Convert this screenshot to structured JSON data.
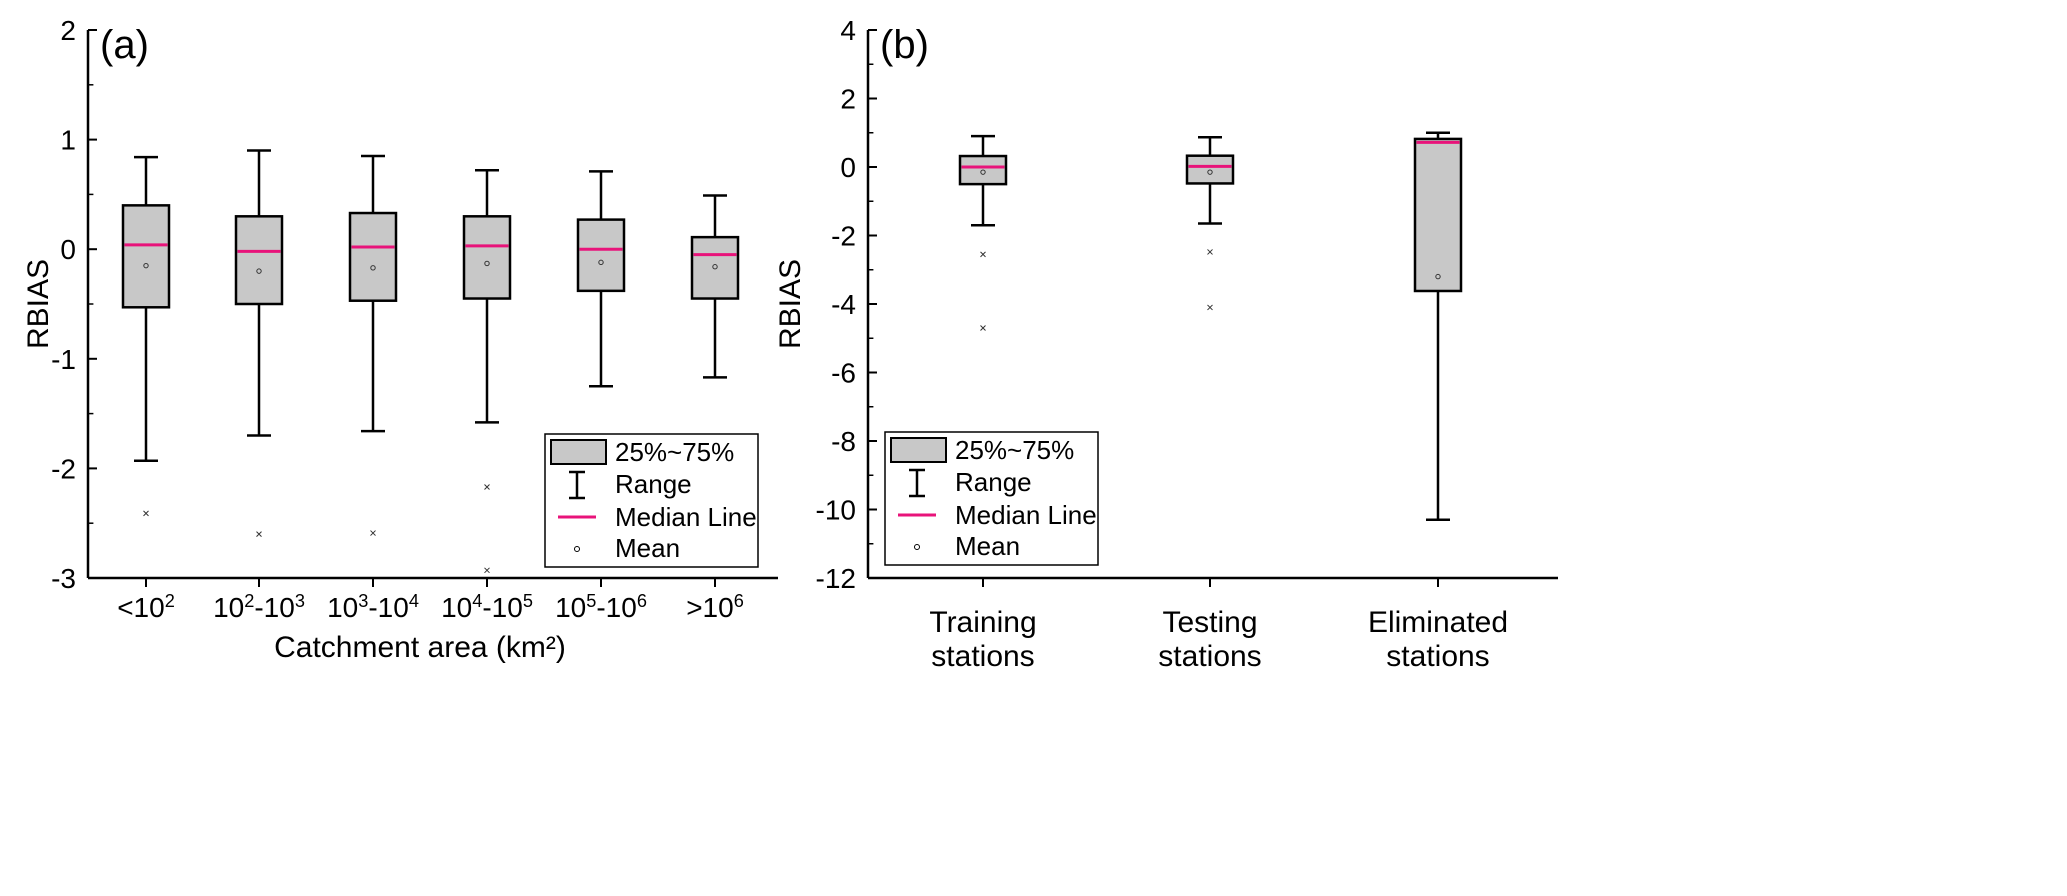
{
  "chart_data": [
    {
      "type": "box",
      "panel_label": "(a)",
      "xlabel": "Catchment area (km²)",
      "ylabel": "RBIAS",
      "ylim": [
        -3,
        2
      ],
      "yticks": [
        -3,
        -2,
        -1,
        0,
        1,
        2
      ],
      "categories": [
        "<10²",
        "10²-10³",
        "10³-10⁴",
        "10⁴-10⁵",
        "10⁵-10⁶",
        ">10⁶"
      ],
      "boxes": [
        {
          "category": "<10²",
          "min": -1.93,
          "q1": -0.53,
          "median": 0.04,
          "q3": 0.4,
          "max": 0.84,
          "mean": -0.15,
          "outliers": [
            -2.41
          ]
        },
        {
          "category": "10²-10³",
          "min": -1.7,
          "q1": -0.5,
          "median": -0.02,
          "q3": 0.3,
          "max": 0.9,
          "mean": -0.2,
          "outliers": [
            -2.6
          ]
        },
        {
          "category": "10³-10⁴",
          "min": -1.66,
          "q1": -0.47,
          "median": 0.02,
          "q3": 0.33,
          "max": 0.85,
          "mean": -0.17,
          "outliers": [
            -2.59
          ]
        },
        {
          "category": "10⁴-10⁵",
          "min": -1.58,
          "q1": -0.45,
          "median": 0.03,
          "q3": 0.3,
          "max": 0.72,
          "mean": -0.13,
          "outliers": [
            -2.17,
            -2.93
          ]
        },
        {
          "category": "10⁵-10⁶",
          "min": -1.25,
          "q1": -0.38,
          "median": 0.0,
          "q3": 0.27,
          "max": 0.71,
          "mean": -0.12,
          "outliers": []
        },
        {
          "category": ">10⁶",
          "min": -1.17,
          "q1": -0.45,
          "median": -0.05,
          "q3": 0.11,
          "max": 0.49,
          "mean": -0.16,
          "outliers": []
        }
      ],
      "legend": {
        "placement": "bottom-right",
        "entries": [
          "25%~75%",
          "Range",
          "Median Line",
          "Mean"
        ]
      }
    },
    {
      "type": "box",
      "panel_label": "(b)",
      "xlabel": "",
      "ylabel": "RBIAS",
      "ylim": [
        -12,
        4
      ],
      "yticks": [
        -12,
        -10,
        -8,
        -6,
        -4,
        -2,
        0,
        2,
        4
      ],
      "categories": [
        "Training stations",
        "Testing stations",
        "Eliminated stations"
      ],
      "category_lines": [
        [
          "Training",
          "stations"
        ],
        [
          "Testing",
          "stations"
        ],
        [
          "Eliminated",
          "stations"
        ]
      ],
      "boxes": [
        {
          "category": "Training stations",
          "min": -1.7,
          "q1": -0.5,
          "median": 0.0,
          "q3": 0.32,
          "max": 0.9,
          "mean": -0.15,
          "outliers": [
            -2.55,
            -4.7
          ]
        },
        {
          "category": "Testing stations",
          "min": -1.65,
          "q1": -0.48,
          "median": 0.02,
          "q3": 0.33,
          "max": 0.87,
          "mean": -0.15,
          "outliers": [
            -2.48,
            -4.1
          ]
        },
        {
          "category": "Eliminated stations",
          "min": -10.3,
          "q1": -3.62,
          "median": 0.72,
          "q3": 0.82,
          "max": 1.0,
          "mean": -3.2,
          "outliers": []
        }
      ],
      "legend": {
        "placement": "bottom-left",
        "entries": [
          "25%~75%",
          "Range",
          "Median Line",
          "Mean"
        ]
      }
    }
  ],
  "colors": {
    "box_fill": "#c8c8c8",
    "median": "#e8137a",
    "axis": "#000000"
  }
}
